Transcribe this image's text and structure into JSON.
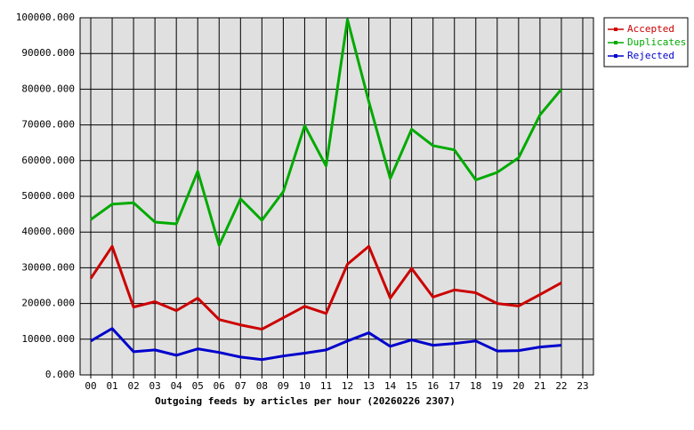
{
  "chart_data": {
    "type": "line",
    "x_label": "Outgoing feeds by articles per hour (20260226 2307)",
    "categories": [
      "00",
      "01",
      "02",
      "03",
      "04",
      "05",
      "06",
      "07",
      "08",
      "09",
      "10",
      "11",
      "12",
      "13",
      "14",
      "15",
      "16",
      "17",
      "18",
      "19",
      "20",
      "21",
      "22",
      "23"
    ],
    "series": [
      {
        "name": "Accepted",
        "color": "#cc0000",
        "values": [
          27000,
          36000,
          19000,
          20500,
          18000,
          21500,
          15500,
          14000,
          12800,
          16000,
          19200,
          17200,
          31000,
          36000,
          21500,
          29800,
          21800,
          23800,
          23000,
          20000,
          19300,
          22500,
          25800,
          null
        ]
      },
      {
        "name": "Duplicates",
        "color": "#00aa00",
        "values": [
          43500,
          47800,
          48200,
          42800,
          42300,
          57000,
          36300,
          49300,
          43300,
          51300,
          69800,
          58500,
          99500,
          76500,
          55000,
          68800,
          64200,
          63000,
          54600,
          56700,
          60800,
          72800,
          80000,
          null
        ]
      },
      {
        "name": "Rejected",
        "color": "#0000cc",
        "values": [
          9500,
          13000,
          6500,
          7000,
          5500,
          7300,
          6300,
          5000,
          4300,
          5300,
          6100,
          7000,
          9500,
          11800,
          8000,
          9800,
          8300,
          8800,
          9500,
          6700,
          6800,
          7800,
          8300,
          null
        ]
      }
    ],
    "ylim": [
      0,
      100000
    ],
    "yticks": [
      {
        "value": 0,
        "label": "0.000"
      },
      {
        "value": 10000,
        "label": "10000.000"
      },
      {
        "value": 20000,
        "label": "20000.000"
      },
      {
        "value": 30000,
        "label": "30000.000"
      },
      {
        "value": 40000,
        "label": "40000.000"
      },
      {
        "value": 50000,
        "label": "50000.000"
      },
      {
        "value": 60000,
        "label": "60000.000"
      },
      {
        "value": 70000,
        "label": "70000.000"
      },
      {
        "value": 80000,
        "label": "80000.000"
      },
      {
        "value": 90000,
        "label": "90000.000"
      },
      {
        "value": 100000,
        "label": "100000.000"
      }
    ],
    "grid": true,
    "legend": "top-right"
  }
}
